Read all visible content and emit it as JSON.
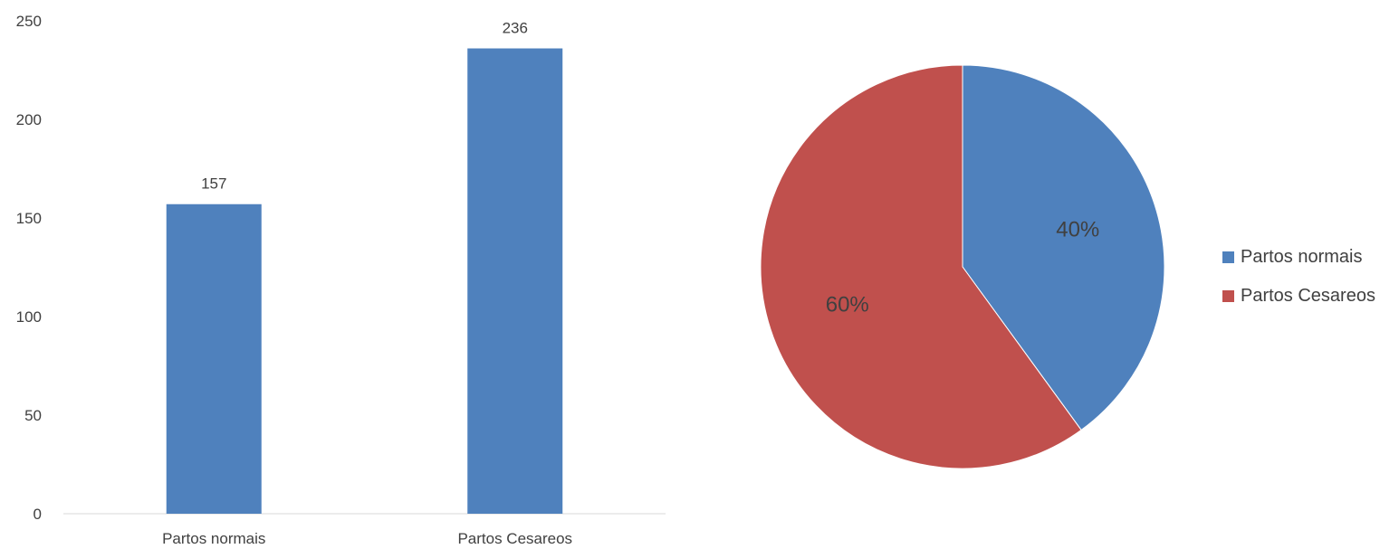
{
  "chart_data": [
    {
      "type": "bar",
      "categories": [
        "Partos normais",
        "Partos Cesareos"
      ],
      "values": [
        157,
        236
      ],
      "data_labels": [
        "157",
        "236"
      ],
      "ylim": [
        0,
        250
      ],
      "yticks": [
        0,
        50,
        100,
        150,
        200,
        250
      ],
      "ytick_labels": [
        "0",
        "50",
        "100",
        "150",
        "200",
        "250"
      ],
      "grid": false,
      "bar_color": "#4f81bd",
      "axis_color": "#d9d9d9"
    },
    {
      "type": "pie",
      "categories": [
        "Partos normais",
        "Partos Cesareos"
      ],
      "values": [
        40,
        60
      ],
      "data_labels": [
        "40%",
        "60%"
      ],
      "colors": [
        "#4f81bd",
        "#c0504d"
      ],
      "legend": {
        "position": "right",
        "entries": [
          "Partos normais",
          "Partos Cesareos"
        ]
      }
    }
  ]
}
